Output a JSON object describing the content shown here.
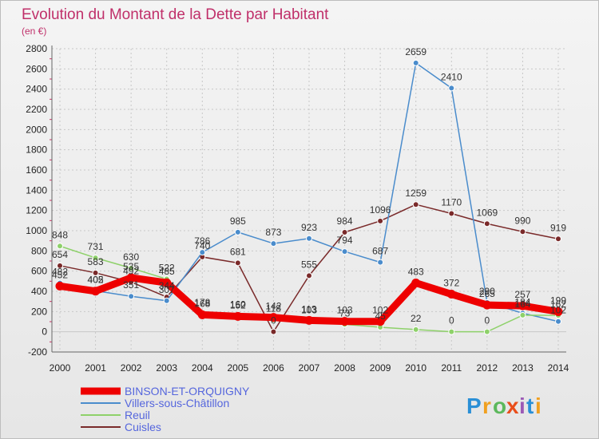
{
  "chart_data": {
    "type": "line",
    "title": "Evolution du Montant de la Dette par Habitant",
    "subtitle": "(en €)",
    "xlabel": "",
    "ylabel": "",
    "x": [
      "2000",
      "2001",
      "2002",
      "2003",
      "2004",
      "2005",
      "2006",
      "2007",
      "2008",
      "2009",
      "2010",
      "2011",
      "2012",
      "2013",
      "2014"
    ],
    "ylim": [
      -200,
      2800
    ],
    "yticks": [
      "-200",
      "0",
      "200",
      "400",
      "600",
      "800",
      "1000",
      "1200",
      "1400",
      "1600",
      "1800",
      "2000",
      "2200",
      "2400",
      "2600",
      "2800"
    ],
    "grid": true,
    "legend_position": "bottom-left",
    "series": [
      {
        "name": "BINSON-ET-ORQUIGNY",
        "color": "#ee0000",
        "values": [
          452,
          402,
          535,
          485,
          168,
          152,
          142,
          113,
          103,
          102,
          483,
          372,
          265,
          257,
          199
        ],
        "labels": [
          "452",
          "402",
          "535",
          "485",
          "168",
          "152",
          "142",
          "113",
          "103",
          "102",
          "483",
          "372",
          "265",
          "257",
          "199"
        ]
      },
      {
        "name": "Villers-sous-Châtillon",
        "color": "#4a8ccc",
        "values": [
          482,
          405,
          351,
          307,
          786,
          985,
          873,
          923,
          794,
          687,
          2659,
          2410,
          290,
          184,
          102
        ],
        "labels": [
          "482",
          "405",
          "351",
          "307",
          "786",
          "985",
          "873",
          "923",
          "794",
          "687",
          "2659",
          "2410",
          "290",
          "184",
          "102"
        ]
      },
      {
        "name": "Reuil",
        "color": "#8ed16a",
        "values": [
          848,
          731,
          630,
          522,
          178,
          160,
          118,
          103,
          73,
          45,
          22,
          0,
          0,
          164,
          162
        ],
        "labels": [
          "848",
          "731",
          "630",
          "522",
          "178",
          "160",
          "118",
          "103",
          "73",
          "45",
          "22",
          "0",
          "0",
          "164",
          "162"
        ]
      },
      {
        "name": "Cuisles",
        "color": "#7a2a2a",
        "values": [
          654,
          583,
          492,
          344,
          740,
          681,
          0,
          555,
          984,
          1096,
          1259,
          1170,
          1069,
          990,
          919
        ],
        "labels": [
          "654",
          "583",
          "492",
          "344",
          "740",
          "681",
          "0",
          "555",
          "984",
          "1096",
          "1259",
          "1170",
          "1069",
          "990",
          "919"
        ]
      }
    ]
  },
  "logo": {
    "text": "Proxiti",
    "letters": [
      "P",
      "r",
      "o",
      "x",
      "i",
      "t",
      "i"
    ],
    "colors": [
      "#2a8fd6",
      "#f0a020",
      "#5cb85c",
      "#e94e1b",
      "#9b59b6",
      "#2a8fd6",
      "#f0a020"
    ]
  }
}
